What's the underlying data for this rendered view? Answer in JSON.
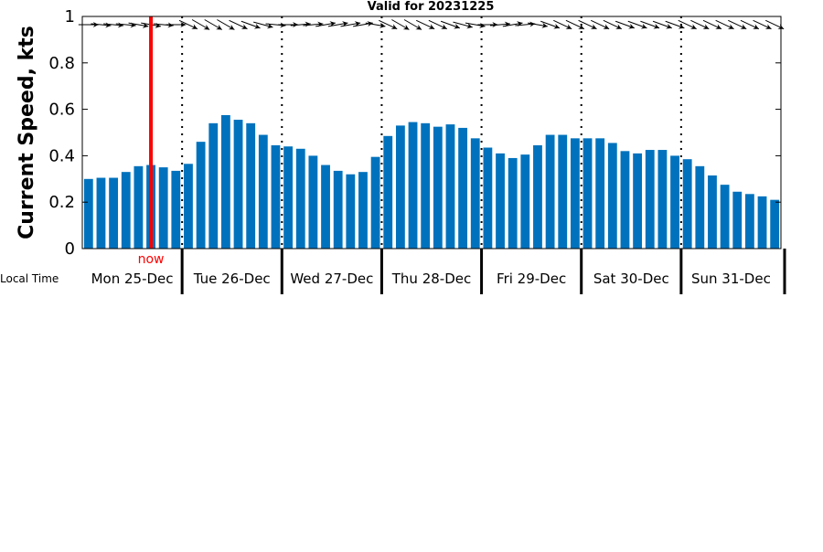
{
  "chart_data": {
    "type": "bar",
    "title": "Valid for 20231225",
    "ylabel": "Current Speed, kts",
    "xlabel": "",
    "ylim": [
      0,
      1
    ],
    "yticks": [
      "0",
      "0.2",
      "0.4",
      "0.6",
      "0.8",
      "1"
    ],
    "grid": false,
    "time_label": "Local Time",
    "now_label": "now",
    "now_index": 5.5,
    "days": [
      "Mon 25-Dec",
      "Tue 26-Dec",
      "Wed 27-Dec",
      "Thu 28-Dec",
      "Fri 29-Dec",
      "Sat 30-Dec",
      "Sun 31-Dec"
    ],
    "bars_per_day": 8,
    "values": [
      0.3,
      0.305,
      0.305,
      0.33,
      0.355,
      0.36,
      0.35,
      0.335,
      0.365,
      0.46,
      0.54,
      0.575,
      0.555,
      0.54,
      0.49,
      0.445,
      0.44,
      0.43,
      0.4,
      0.36,
      0.335,
      0.32,
      0.33,
      0.395,
      0.485,
      0.53,
      0.545,
      0.54,
      0.525,
      0.535,
      0.52,
      0.475,
      0.435,
      0.41,
      0.39,
      0.405,
      0.445,
      0.49,
      0.49,
      0.475,
      0.475,
      0.475,
      0.455,
      0.42,
      0.41,
      0.425,
      0.425,
      0.4,
      0.385,
      0.355,
      0.315,
      0.275,
      0.245,
      0.235,
      0.225,
      0.21
    ],
    "arrows_dir_deg": [
      90,
      95,
      95,
      95,
      100,
      100,
      95,
      90,
      115,
      120,
      120,
      120,
      115,
      110,
      105,
      95,
      90,
      85,
      85,
      80,
      80,
      80,
      80,
      100,
      115,
      120,
      120,
      115,
      115,
      110,
      105,
      100,
      90,
      85,
      80,
      85,
      100,
      110,
      115,
      115,
      115,
      115,
      115,
      110,
      110,
      110,
      110,
      110,
      115,
      115,
      115,
      115,
      115,
      115,
      115,
      115
    ],
    "colors": {
      "bar": "#0072bd",
      "now_line": "#ff0000",
      "now_text": "#ff0000",
      "axis": "#000000"
    }
  }
}
